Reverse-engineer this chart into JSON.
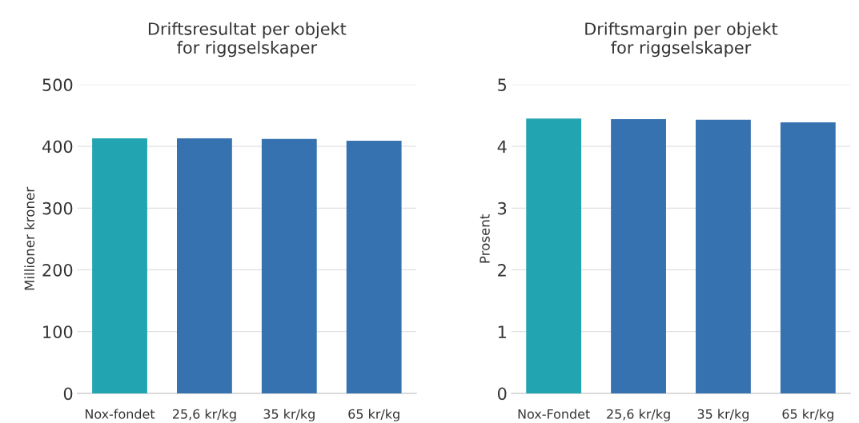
{
  "chart_data": [
    {
      "type": "bar",
      "title": "Driftsresultat per objekt\nfor riggselskaper",
      "ylabel": "Millioner kroner",
      "categories": [
        "Nox-fondet",
        "25,6 kr/kg",
        "35 kr/kg",
        "65 kr/kg"
      ],
      "values": [
        413,
        413,
        412,
        409
      ],
      "colors": [
        "#22a5b0",
        "#3672b0",
        "#3672b0",
        "#3672b0"
      ],
      "ylim": [
        0,
        500
      ],
      "yticks": [
        0,
        100,
        200,
        300,
        400,
        500
      ],
      "grid": "y"
    },
    {
      "type": "bar",
      "title": "Driftsmargin per objekt\nfor riggselskaper",
      "ylabel": "Prosent",
      "categories": [
        "Nox-Fondet",
        "25,6 kr/kg",
        "35 kr/kg",
        "65 kr/kg"
      ],
      "values": [
        4.45,
        4.44,
        4.43,
        4.39
      ],
      "colors": [
        "#22a5b0",
        "#3672b0",
        "#3672b0",
        "#3672b0"
      ],
      "ylim": [
        0,
        5
      ],
      "yticks": [
        0,
        1,
        2,
        3,
        4,
        5
      ],
      "grid": "y"
    }
  ]
}
